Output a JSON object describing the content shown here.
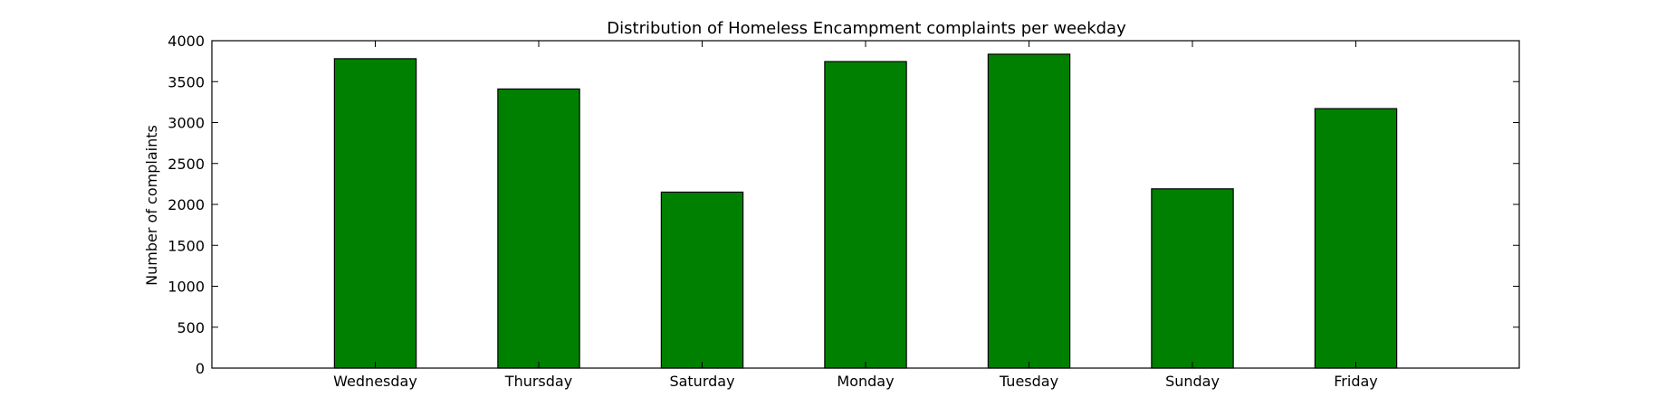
{
  "chart_data": {
    "type": "bar",
    "title": "Distribution of  Homeless Encampment complaints per weekday",
    "xlabel": "",
    "ylabel": "Number of complaints",
    "categories": [
      "Wednesday",
      "Thursday",
      "Saturday",
      "Monday",
      "Tuesday",
      "Sunday",
      "Friday"
    ],
    "values": [
      3780,
      3410,
      2150,
      3745,
      3835,
      2190,
      3170
    ],
    "ylim": [
      0,
      4000
    ],
    "yticks": [
      0,
      500,
      1000,
      1500,
      2000,
      2500,
      3000,
      3500,
      4000
    ],
    "bar_color": "#008000",
    "edge_color": "#000000",
    "grid": false,
    "legend": "none"
  }
}
